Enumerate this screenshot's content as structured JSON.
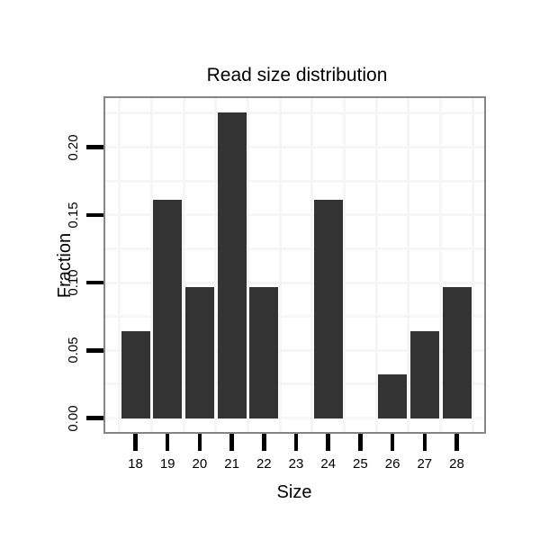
{
  "chart_data": {
    "type": "bar",
    "title": "Read size distribution",
    "xlabel": "Size",
    "ylabel": "Fraction",
    "categories": [
      "18",
      "19",
      "20",
      "21",
      "22",
      "23",
      "24",
      "25",
      "26",
      "27",
      "28"
    ],
    "values": [
      0.0645,
      0.1613,
      0.0968,
      0.2258,
      0.0968,
      0,
      0.1613,
      0,
      0.0323,
      0.0645,
      0.0968
    ],
    "y_tick_labels": [
      "0.00",
      "0.05",
      "0.10",
      "0.15",
      "0.20"
    ],
    "y_tick_values": [
      0,
      0.05,
      0.1,
      0.15,
      0.2
    ],
    "ylim": [
      0,
      0.237
    ],
    "grid": {
      "visible": true,
      "horizontal_interval": 0.025,
      "vertical": "category-boundaries"
    },
    "legend": "none",
    "colors": {
      "bar": "#333333",
      "panel_border": "#858585",
      "gridline": "#f6f6f6",
      "text": "#000000",
      "background": "#ffffff"
    }
  }
}
